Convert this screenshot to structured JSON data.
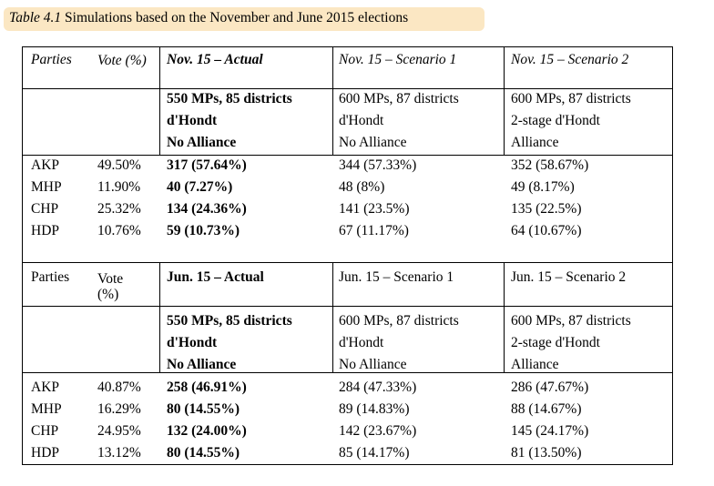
{
  "caption": {
    "label": "Table 4.1",
    "title": "Simulations based on the November and June 2015 elections"
  },
  "nov": {
    "header": {
      "parties": "Parties",
      "vote": "Vote (%)",
      "actual": "Nov. 15 – Actual",
      "s1": "Nov. 15 – Scenario 1",
      "s2": "Nov. 15 – Scenario 2"
    },
    "config": {
      "actual": [
        "550 MPs, 85 districts",
        "d'Hondt",
        "No Alliance"
      ],
      "s1": [
        "600 MPs, 87 districts",
        "d'Hondt",
        "No Alliance"
      ],
      "s2": [
        "600 MPs, 87 districts",
        "2-stage d'Hondt",
        "Alliance"
      ]
    },
    "rows": [
      {
        "party": "AKP",
        "vote": "49.50%",
        "actual": "317 (57.64%)",
        "s1": "344 (57.33%)",
        "s2": "352 (58.67%)"
      },
      {
        "party": "MHP",
        "vote": "11.90%",
        "actual": "40 (7.27%)",
        "s1": "48 (8%)",
        "s2": "49 (8.17%)"
      },
      {
        "party": "CHP",
        "vote": "25.32%",
        "actual": "134 (24.36%)",
        "s1": "141 (23.5%)",
        "s2": "135 (22.5%)"
      },
      {
        "party": "HDP",
        "vote": "10.76%",
        "actual": "59 (10.73%)",
        "s1": "67 (11.17%)",
        "s2": "64 (10.67%)"
      }
    ]
  },
  "jun": {
    "header": {
      "parties": "Parties",
      "vote": "Vote (%)",
      "actual": "Jun. 15 – Actual",
      "s1": "Jun. 15 – Scenario 1",
      "s2": "Jun. 15 – Scenario 2"
    },
    "config": {
      "actual": [
        "550 MPs, 85 districts",
        "d'Hondt",
        "No Alliance"
      ],
      "s1": [
        "600 MPs, 87 districts",
        "d'Hondt",
        "No Alliance"
      ],
      "s2": [
        "600 MPs, 87 districts",
        "2-stage d'Hondt",
        "Alliance"
      ]
    },
    "rows": [
      {
        "party": "AKP",
        "vote": "40.87%",
        "actual": "258 (46.91%)",
        "s1": "284 (47.33%)",
        "s2": "286 (47.67%)"
      },
      {
        "party": "MHP",
        "vote": "16.29%",
        "actual": "80 (14.55%)",
        "s1": "89 (14.83%)",
        "s2": "88 (14.67%)"
      },
      {
        "party": "CHP",
        "vote": "24.95%",
        "actual": "132 (24.00%)",
        "s1": "142 (23.67%)",
        "s2": "145 (24.17%)"
      },
      {
        "party": "HDP",
        "vote": "13.12%",
        "actual": "80 (14.55%)",
        "s1": "85 (14.17%)",
        "s2": "81 (13.50%)"
      }
    ]
  }
}
